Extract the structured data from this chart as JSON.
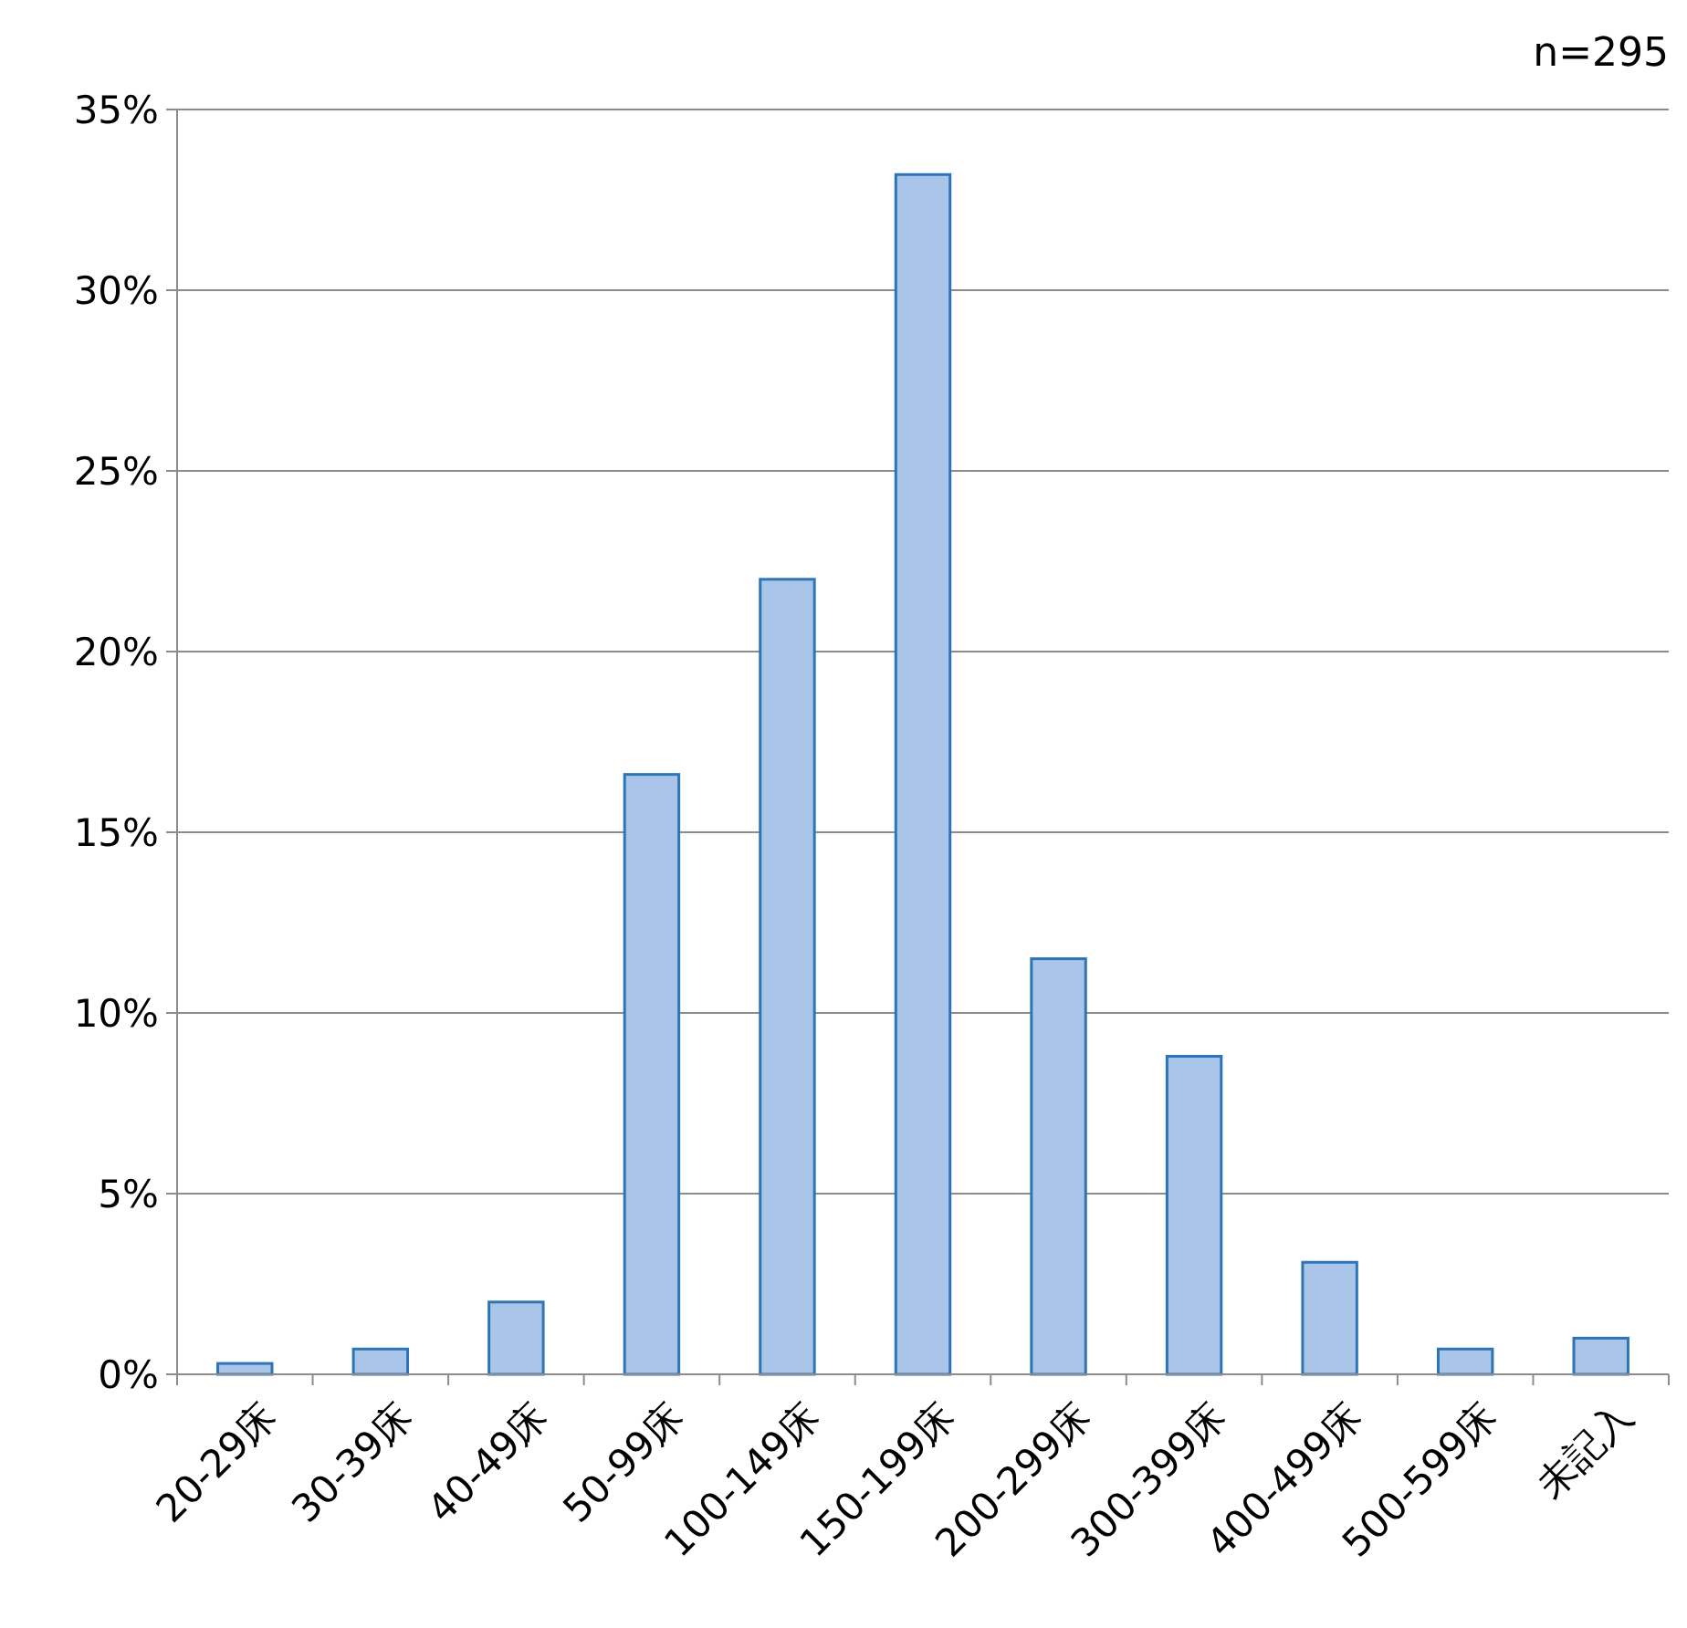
{
  "chart_data": {
    "type": "bar",
    "categories": [
      "20-29床",
      "30-39床",
      "40-49床",
      "50-99床",
      "100-149床",
      "150-199床",
      "200-299床",
      "300-399床",
      "400-499床",
      "500-599床",
      "未記入"
    ],
    "values": [
      0.3,
      0.7,
      2.0,
      16.6,
      22.0,
      33.2,
      11.5,
      8.8,
      3.1,
      0.7,
      1.0
    ],
    "color": "#a9c6ea",
    "ylim": [
      0,
      35
    ],
    "yticks": [
      {
        "value": 0,
        "label": "0%"
      },
      {
        "value": 5,
        "label": "5%"
      },
      {
        "value": 10,
        "label": "10%"
      },
      {
        "value": 15,
        "label": "15%"
      },
      {
        "value": 20,
        "label": "20%"
      },
      {
        "value": 25,
        "label": "25%"
      },
      {
        "value": 30,
        "label": "30%"
      },
      {
        "value": 35,
        "label": "35%"
      }
    ],
    "grid": "y",
    "annotations": [
      "n=295"
    ]
  }
}
